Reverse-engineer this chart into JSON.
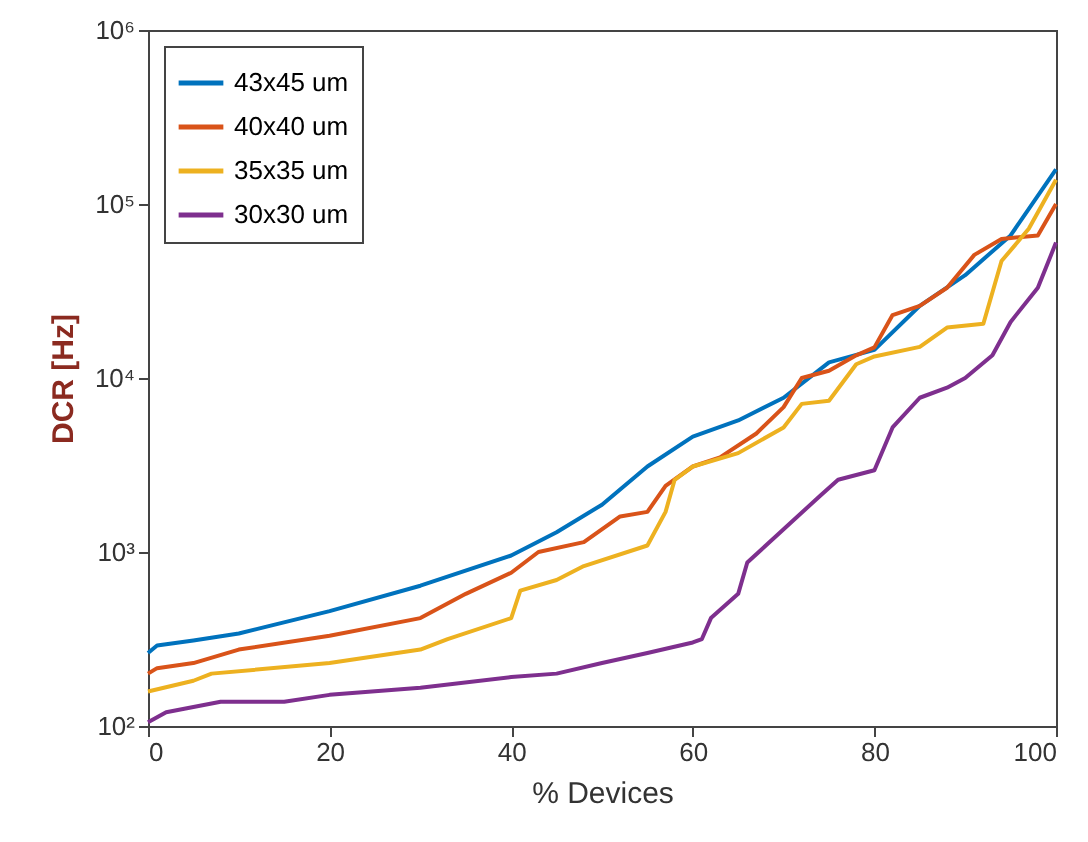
{
  "chart_data": {
    "type": "line",
    "xlabel": "% Devices",
    "ylabel": "DCR [Hz]",
    "log": "y",
    "xlim": [
      0,
      100
    ],
    "xticks": [
      0,
      20,
      40,
      60,
      80,
      100
    ],
    "ylim": [
      100,
      1000000
    ],
    "yticks": [
      {
        "value": 100,
        "label": "10²"
      },
      {
        "value": 1000,
        "label": "10³"
      },
      {
        "value": 10000,
        "label": "10⁴"
      },
      {
        "value": 100000,
        "label": "10⁵"
      },
      {
        "value": 1000000,
        "label": "10⁶"
      }
    ],
    "legend": "top left",
    "grid": false,
    "marker": "none",
    "line_style": "solid",
    "series": [
      {
        "name": "43x45 um",
        "color": "#0072bd",
        "x": [
          0,
          1,
          5,
          10,
          20,
          30,
          40,
          45,
          50,
          55,
          60,
          65,
          70,
          75,
          80,
          85,
          90,
          95,
          100
        ],
        "values": [
          263,
          290,
          310,
          340,
          457,
          640,
          955,
          1300,
          1870,
          3100,
          4600,
          5700,
          7700,
          12300,
          14500,
          26000,
          39000,
          66000,
          158000
        ]
      },
      {
        "name": "40x40 um",
        "color": "#d95319",
        "x": [
          0,
          1,
          5,
          10,
          20,
          30,
          35,
          40,
          43,
          48,
          52,
          55,
          57,
          60,
          63,
          67,
          70,
          72,
          75,
          78,
          80,
          82,
          85,
          88,
          91,
          94,
          98,
          100
        ],
        "values": [
          200,
          215,
          230,
          275,
          330,
          417,
          575,
          760,
          1000,
          1140,
          1600,
          1700,
          2400,
          3100,
          3500,
          4800,
          6800,
          10000,
          11000,
          13500,
          15000,
          23000,
          26000,
          33000,
          51000,
          63000,
          66000,
          100000
        ]
      },
      {
        "name": "35x35 um",
        "color": "#edb120",
        "x": [
          0,
          5,
          7,
          20,
          30,
          33,
          40,
          41,
          45,
          48,
          55,
          57,
          58,
          60,
          65,
          70,
          72,
          75,
          78,
          80,
          85,
          88,
          92,
          94,
          97,
          100
        ],
        "values": [
          158,
          182,
          200,
          230,
          275,
          316,
          417,
          600,
          690,
          830,
          1090,
          1700,
          2600,
          3100,
          3700,
          5200,
          7100,
          7400,
          12000,
          13300,
          15100,
          19500,
          20500,
          47000,
          72000,
          138000
        ]
      },
      {
        "name": "30x30 um",
        "color": "#7e2f8e",
        "x": [
          0,
          2,
          8,
          15,
          20,
          30,
          40,
          45,
          50,
          55,
          60,
          61,
          62,
          65,
          66,
          70,
          74,
          76,
          80,
          82,
          85,
          88,
          90,
          93,
          95,
          98,
          100
        ],
        "values": [
          105,
          120,
          138,
          138,
          151,
          166,
          191,
          200,
          230,
          263,
          302,
          316,
          417,
          575,
          870,
          1350,
          2100,
          2600,
          2950,
          5200,
          7700,
          8800,
          10000,
          13500,
          21000,
          33000,
          60000
        ]
      }
    ]
  }
}
